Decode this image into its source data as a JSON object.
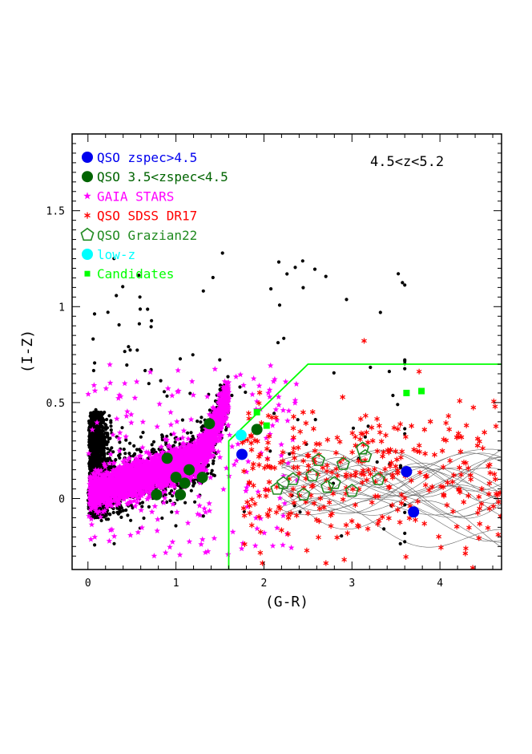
{
  "chart_data": {
    "type": "scatter",
    "title": "",
    "annotation": "4.5<z<5.2",
    "xlabel": "(G-R)",
    "ylabel": "(I-Z)",
    "xlim": [
      -0.18,
      4.7
    ],
    "ylim": [
      -0.37,
      1.9
    ],
    "x_ticks": [
      0,
      1,
      2,
      3,
      4
    ],
    "x_tick_labels": [
      "0",
      "1",
      "2",
      "3",
      "4"
    ],
    "y_ticks": [
      0,
      0.5,
      1,
      1.5
    ],
    "y_tick_labels": [
      "0",
      "0.5",
      "1",
      "1.5"
    ],
    "grid": false,
    "legend_position": "top-left",
    "legend": [
      {
        "label": "QSO zspec>4.5",
        "color": "#0000ee",
        "marker": "circle"
      },
      {
        "label": "QSO 3.5<zspec<4.5",
        "color": "#006400",
        "marker": "circle"
      },
      {
        "label": "GAIA STARS",
        "color": "#ff00ff",
        "marker": "star"
      },
      {
        "label": "QSO SDSS DR17",
        "color": "#ff0000",
        "marker": "asterisk"
      },
      {
        "label": "QSO Grazian22",
        "color": "#228b22",
        "marker": "pentagon"
      },
      {
        "label": "low-z",
        "color": "#00ffff",
        "marker": "circle"
      },
      {
        "label": "Candidates",
        "color": "#00ff00",
        "marker": "square"
      }
    ],
    "selection_boundary": {
      "color": "#00ff00",
      "points": [
        [
          1.6,
          -0.37
        ],
        [
          1.6,
          0.3
        ],
        [
          2.5,
          0.7
        ],
        [
          4.7,
          0.7
        ]
      ]
    },
    "series": [
      {
        "name": "QSO zspec>4.5",
        "color": "#0000ee",
        "marker": "circle",
        "points": [
          [
            1.75,
            0.23
          ],
          [
            3.62,
            0.14
          ],
          [
            3.7,
            -0.07
          ]
        ]
      },
      {
        "name": "QSO 3.5<zspec<4.5",
        "color": "#006400",
        "marker": "circle",
        "points": [
          [
            0.9,
            0.21
          ],
          [
            1.0,
            0.11
          ],
          [
            1.1,
            0.08
          ],
          [
            1.15,
            0.15
          ],
          [
            1.05,
            0.02
          ],
          [
            0.78,
            0.02
          ],
          [
            1.3,
            0.11
          ],
          [
            1.38,
            0.39
          ],
          [
            1.92,
            0.36
          ]
        ]
      },
      {
        "name": "low-z",
        "color": "#00ffff",
        "marker": "circle",
        "points": [
          [
            1.74,
            0.33
          ]
        ]
      },
      {
        "name": "Candidates",
        "color": "#00ff00",
        "marker": "square",
        "points": [
          [
            3.62,
            0.55
          ],
          [
            3.79,
            0.56
          ],
          [
            1.92,
            0.45
          ],
          [
            2.03,
            0.38
          ]
        ]
      },
      {
        "name": "QSO Grazian22",
        "color": "#228b22",
        "marker": "pentagon",
        "points": [
          [
            2.15,
            0.05
          ],
          [
            2.22,
            0.08
          ],
          [
            2.33,
            0.1
          ],
          [
            2.45,
            0.02
          ],
          [
            2.55,
            0.12
          ],
          [
            2.72,
            0.06
          ],
          [
            2.9,
            0.18
          ],
          [
            3.0,
            0.04
          ],
          [
            3.12,
            0.26
          ],
          [
            3.3,
            0.1
          ],
          [
            2.62,
            0.2
          ],
          [
            3.15,
            0.22
          ],
          [
            2.8,
            0.08
          ]
        ]
      }
    ],
    "generated_distributions": {
      "black_stars_count": 2600,
      "gaia_stars_count": 3200,
      "sdss_qso_count": 330,
      "track_count": 24
    }
  }
}
